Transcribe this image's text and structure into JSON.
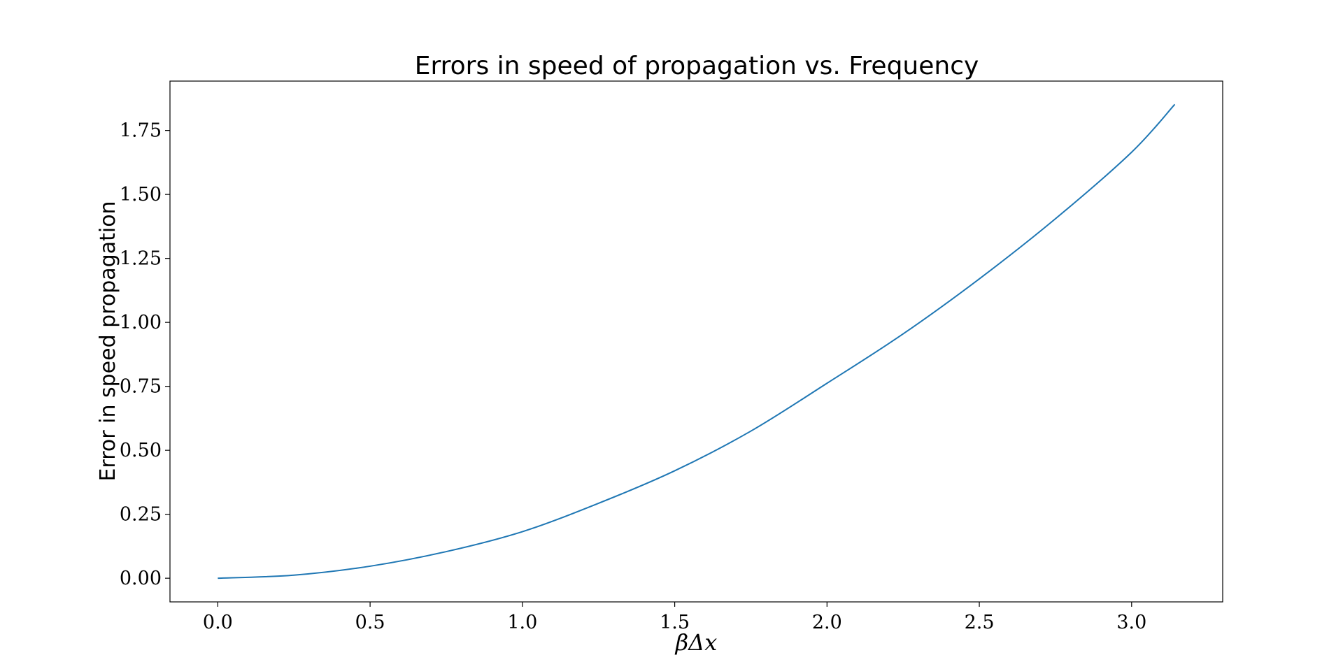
{
  "chart_data": {
    "type": "line",
    "title": "Errors in speed of propagation vs. Frequency",
    "xlabel": "βΔx",
    "ylabel": "Error in speed propagation",
    "xlim": [
      -0.157,
      3.299
    ],
    "ylim": [
      -0.0925,
      1.943
    ],
    "xticks": [
      0.0,
      0.5,
      1.0,
      1.5,
      2.0,
      2.5,
      3.0
    ],
    "xtick_labels": [
      "0.0",
      "0.5",
      "1.0",
      "1.5",
      "2.0",
      "2.5",
      "3.0"
    ],
    "yticks": [
      0.0,
      0.25,
      0.5,
      0.75,
      1.0,
      1.25,
      1.5,
      1.75
    ],
    "ytick_labels": [
      "0.00",
      "0.25",
      "0.50",
      "0.75",
      "1.00",
      "1.25",
      "1.50",
      "1.75"
    ],
    "grid": false,
    "series": [
      {
        "color": "#1f77b4",
        "x": [
          0.0,
          0.25,
          0.5,
          0.75,
          1.0,
          1.25,
          1.5,
          1.75,
          2.0,
          2.25,
          2.5,
          2.75,
          3.0,
          3.1416
        ],
        "y": [
          0.0,
          0.012,
          0.047,
          0.104,
          0.182,
          0.293,
          0.42,
          0.575,
          0.762,
          0.955,
          1.17,
          1.405,
          1.665,
          1.852
        ]
      }
    ]
  }
}
